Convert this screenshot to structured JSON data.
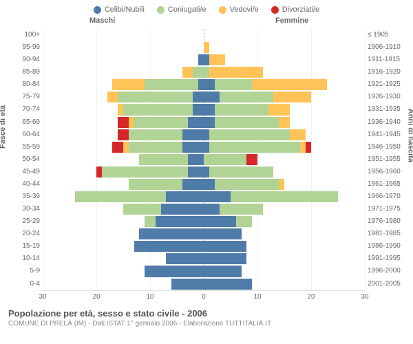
{
  "legend": [
    {
      "label": "Celibi/Nubili",
      "color": "#4f7ba8"
    },
    {
      "label": "Coniugati/e",
      "color": "#b1d395"
    },
    {
      "label": "Vedovi/e",
      "color": "#ffc357"
    },
    {
      "label": "Divorziati/e",
      "color": "#d62728"
    }
  ],
  "headers": {
    "m": "Maschi",
    "f": "Femmine"
  },
  "ylabel_left": "Fasce di età",
  "ylabel_right": "Anni di nascita",
  "xlim": 30,
  "xticks": [
    30,
    20,
    10,
    0,
    10,
    20,
    30
  ],
  "colors": {
    "celibi": "#4f7ba8",
    "coniugati": "#b1d395",
    "vedovi": "#ffc357",
    "divorziati": "#d62728",
    "grid": "#f0f0f0",
    "center": "#aaaaaa",
    "text": "#666666",
    "bg": "#ffffff"
  },
  "title": "Popolazione per età, sesso e stato civile - 2006",
  "subtitle": "COMUNE DI PRELÀ (IM) - Dati ISTAT 1° gennaio 2006 - Elaborazione TUTTITALIA.IT",
  "rows": [
    {
      "age": "100+",
      "birth": "≤ 1905",
      "m": {
        "c": 0,
        "co": 0,
        "v": 0,
        "d": 0
      },
      "f": {
        "c": 0,
        "co": 0,
        "v": 0,
        "d": 0
      }
    },
    {
      "age": "95-99",
      "birth": "1906-1910",
      "m": {
        "c": 0,
        "co": 0,
        "v": 0,
        "d": 0
      },
      "f": {
        "c": 0,
        "co": 0,
        "v": 1,
        "d": 0
      }
    },
    {
      "age": "90-94",
      "birth": "1911-1915",
      "m": {
        "c": 1,
        "co": 0,
        "v": 0,
        "d": 0
      },
      "f": {
        "c": 1,
        "co": 0,
        "v": 3,
        "d": 0
      }
    },
    {
      "age": "85-89",
      "birth": "1916-1920",
      "m": {
        "c": 0,
        "co": 2,
        "v": 2,
        "d": 0
      },
      "f": {
        "c": 0,
        "co": 1,
        "v": 10,
        "d": 0
      }
    },
    {
      "age": "80-84",
      "birth": "1921-1925",
      "m": {
        "c": 1,
        "co": 10,
        "v": 6,
        "d": 0
      },
      "f": {
        "c": 2,
        "co": 7,
        "v": 14,
        "d": 0
      }
    },
    {
      "age": "75-79",
      "birth": "1926-1930",
      "m": {
        "c": 2,
        "co": 14,
        "v": 2,
        "d": 0
      },
      "f": {
        "c": 3,
        "co": 10,
        "v": 7,
        "d": 0
      }
    },
    {
      "age": "70-74",
      "birth": "1931-1935",
      "m": {
        "c": 2,
        "co": 13,
        "v": 1,
        "d": 0
      },
      "f": {
        "c": 2,
        "co": 10,
        "v": 4,
        "d": 0
      }
    },
    {
      "age": "65-69",
      "birth": "1936-1940",
      "m": {
        "c": 3,
        "co": 10,
        "v": 1,
        "d": 2
      },
      "f": {
        "c": 2,
        "co": 12,
        "v": 2,
        "d": 0
      }
    },
    {
      "age": "60-64",
      "birth": "1941-1945",
      "m": {
        "c": 4,
        "co": 10,
        "v": 0,
        "d": 2
      },
      "f": {
        "c": 1,
        "co": 15,
        "v": 3,
        "d": 0
      }
    },
    {
      "age": "55-59",
      "birth": "1946-1950",
      "m": {
        "c": 4,
        "co": 10,
        "v": 1,
        "d": 2
      },
      "f": {
        "c": 1,
        "co": 17,
        "v": 1,
        "d": 1
      }
    },
    {
      "age": "50-54",
      "birth": "1951-1955",
      "m": {
        "c": 3,
        "co": 9,
        "v": 0,
        "d": 0
      },
      "f": {
        "c": 0,
        "co": 8,
        "v": 0,
        "d": 2
      }
    },
    {
      "age": "45-49",
      "birth": "1956-1960",
      "m": {
        "c": 3,
        "co": 16,
        "v": 0,
        "d": 1
      },
      "f": {
        "c": 1,
        "co": 12,
        "v": 0,
        "d": 0
      }
    },
    {
      "age": "40-44",
      "birth": "1961-1965",
      "m": {
        "c": 4,
        "co": 10,
        "v": 0,
        "d": 0
      },
      "f": {
        "c": 2,
        "co": 12,
        "v": 1,
        "d": 0
      }
    },
    {
      "age": "35-39",
      "birth": "1966-1970",
      "m": {
        "c": 7,
        "co": 17,
        "v": 0,
        "d": 0
      },
      "f": {
        "c": 5,
        "co": 20,
        "v": 0,
        "d": 0
      }
    },
    {
      "age": "30-34",
      "birth": "1971-1975",
      "m": {
        "c": 8,
        "co": 7,
        "v": 0,
        "d": 0
      },
      "f": {
        "c": 3,
        "co": 8,
        "v": 0,
        "d": 0
      }
    },
    {
      "age": "25-29",
      "birth": "1976-1980",
      "m": {
        "c": 9,
        "co": 2,
        "v": 0,
        "d": 0
      },
      "f": {
        "c": 6,
        "co": 3,
        "v": 0,
        "d": 0
      }
    },
    {
      "age": "20-24",
      "birth": "1981-1985",
      "m": {
        "c": 12,
        "co": 0,
        "v": 0,
        "d": 0
      },
      "f": {
        "c": 7,
        "co": 0,
        "v": 0,
        "d": 0
      }
    },
    {
      "age": "15-19",
      "birth": "1986-1990",
      "m": {
        "c": 13,
        "co": 0,
        "v": 0,
        "d": 0
      },
      "f": {
        "c": 8,
        "co": 0,
        "v": 0,
        "d": 0
      }
    },
    {
      "age": "10-14",
      "birth": "1991-1995",
      "m": {
        "c": 7,
        "co": 0,
        "v": 0,
        "d": 0
      },
      "f": {
        "c": 8,
        "co": 0,
        "v": 0,
        "d": 0
      }
    },
    {
      "age": "5-9",
      "birth": "1996-2000",
      "m": {
        "c": 11,
        "co": 0,
        "v": 0,
        "d": 0
      },
      "f": {
        "c": 7,
        "co": 0,
        "v": 0,
        "d": 0
      }
    },
    {
      "age": "0-4",
      "birth": "2001-2005",
      "m": {
        "c": 6,
        "co": 0,
        "v": 0,
        "d": 0
      },
      "f": {
        "c": 9,
        "co": 0,
        "v": 0,
        "d": 0
      }
    }
  ]
}
